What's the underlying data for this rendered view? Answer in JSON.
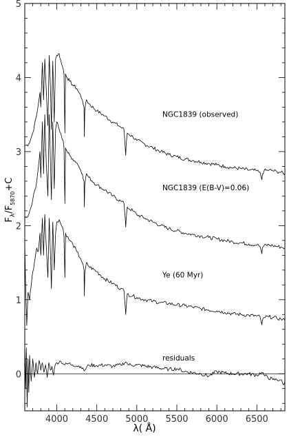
{
  "chart_data": {
    "type": "line",
    "title": "",
    "xlabel": "λ( Å)",
    "ylabel_parts": {
      "main": "F",
      "sub1": "λ",
      "mid": "/F",
      "sub2": "5870",
      "tail": "+C"
    },
    "xlim": [
      3600,
      6850
    ],
    "ylim": [
      -0.5,
      5
    ],
    "x_ticks": [
      4000,
      4500,
      5000,
      5500,
      6000,
      6500
    ],
    "x_tick_labels": [
      "4000",
      "4500",
      "5000",
      "5500",
      "6000",
      "6500"
    ],
    "y_ticks": [
      0,
      1,
      2,
      3,
      4,
      5
    ],
    "y_tick_labels": [
      "0",
      "1",
      "2",
      "3",
      "4",
      "5"
    ],
    "zero_line": true,
    "annotations": [
      {
        "text": "NGC1839 (observed)",
        "x": 5320,
        "y": 3.47
      },
      {
        "text": "NGC1839 (E(B-V)=0.06)",
        "x": 5320,
        "y": 2.48
      },
      {
        "text": "Ye (60 Myr)",
        "x": 5320,
        "y": 1.3
      },
      {
        "text": "residuals",
        "x": 5320,
        "y": 0.18
      }
    ],
    "series": [
      {
        "key": "observed",
        "x": [
          3600,
          3650,
          3700,
          3750,
          3790,
          3800,
          3820,
          3835,
          3850,
          3870,
          3889,
          3905,
          3920,
          3933,
          3950,
          3968,
          3985,
          4000,
          4030,
          4060,
          4080,
          4090,
          4101,
          4110,
          4130,
          4160,
          4200,
          4250,
          4300,
          4320,
          4340,
          4345,
          4350,
          4370,
          4400,
          4500,
          4600,
          4700,
          4800,
          4840,
          4855,
          4861,
          4867,
          4880,
          4950,
          5000,
          5100,
          5200,
          5300,
          5400,
          5500,
          5600,
          5700,
          5800,
          5900,
          6000,
          6100,
          6200,
          6300,
          6400,
          6500,
          6540,
          6555,
          6563,
          6570,
          6590,
          6650,
          6700,
          6750,
          6800,
          6850
        ],
        "y": [
          3.08,
          3.1,
          3.25,
          3.5,
          3.8,
          3.6,
          4.2,
          3.7,
          4.25,
          3.8,
          3.35,
          4.3,
          3.9,
          3.3,
          4.22,
          3.4,
          4.25,
          4.3,
          4.32,
          4.18,
          4.12,
          4.05,
          3.25,
          4.05,
          4.0,
          3.95,
          3.9,
          3.85,
          3.75,
          3.7,
          3.6,
          3.2,
          3.55,
          3.7,
          3.65,
          3.55,
          3.48,
          3.4,
          3.33,
          3.3,
          3.05,
          2.95,
          3.1,
          3.25,
          3.2,
          3.15,
          3.1,
          3.05,
          3.0,
          2.96,
          2.93,
          2.9,
          2.88,
          2.86,
          2.84,
          2.82,
          2.8,
          2.78,
          2.77,
          2.75,
          2.74,
          2.72,
          2.65,
          2.62,
          2.7,
          2.74,
          2.75,
          2.74,
          2.73,
          2.72,
          2.7
        ]
      },
      {
        "key": "dereddened",
        "x": [
          3600,
          3650,
          3700,
          3750,
          3790,
          3800,
          3820,
          3835,
          3850,
          3870,
          3889,
          3905,
          3920,
          3933,
          3950,
          3968,
          3985,
          4000,
          4030,
          4060,
          4080,
          4090,
          4101,
          4110,
          4130,
          4160,
          4200,
          4250,
          4300,
          4320,
          4340,
          4345,
          4350,
          4370,
          4400,
          4500,
          4600,
          4700,
          4800,
          4840,
          4855,
          4861,
          4867,
          4880,
          4950,
          5000,
          5100,
          5200,
          5300,
          5400,
          5500,
          5600,
          5700,
          5800,
          5900,
          6000,
          6100,
          6200,
          6300,
          6400,
          6500,
          6540,
          6555,
          6563,
          6570,
          6590,
          6650,
          6700,
          6750,
          6800,
          6850
        ],
        "y": [
          2.1,
          2.15,
          2.35,
          2.6,
          3.0,
          2.65,
          3.4,
          2.7,
          3.5,
          2.8,
          2.4,
          3.5,
          2.9,
          2.35,
          3.4,
          2.5,
          3.3,
          3.4,
          3.3,
          3.2,
          3.15,
          3.05,
          2.3,
          3.05,
          3.0,
          2.95,
          2.9,
          2.85,
          2.75,
          2.7,
          2.6,
          2.25,
          2.55,
          2.7,
          2.65,
          2.55,
          2.48,
          2.4,
          2.33,
          2.3,
          2.1,
          1.98,
          2.1,
          2.25,
          2.2,
          2.15,
          2.1,
          2.05,
          2.0,
          1.96,
          1.93,
          1.9,
          1.88,
          1.86,
          1.84,
          1.82,
          1.8,
          1.78,
          1.77,
          1.75,
          1.74,
          1.72,
          1.66,
          1.62,
          1.7,
          1.73,
          1.74,
          1.73,
          1.72,
          1.71,
          1.7
        ]
      },
      {
        "key": "model",
        "x": [
          3600,
          3610,
          3625,
          3640,
          3660,
          3690,
          3720,
          3750,
          3770,
          3790,
          3800,
          3820,
          3835,
          3850,
          3870,
          3889,
          3905,
          3920,
          3933,
          3950,
          3968,
          3985,
          4000,
          4030,
          4060,
          4080,
          4090,
          4101,
          4110,
          4130,
          4160,
          4200,
          4250,
          4300,
          4320,
          4340,
          4345,
          4350,
          4370,
          4400,
          4500,
          4600,
          4700,
          4800,
          4840,
          4855,
          4861,
          4867,
          4880,
          4950,
          5000,
          5100,
          5200,
          5300,
          5400,
          5500,
          5600,
          5700,
          5800,
          5900,
          6000,
          6100,
          6200,
          6300,
          6400,
          6500,
          6540,
          6555,
          6563,
          6570,
          6590,
          6650,
          6700,
          6750,
          6800,
          6850
        ],
        "y": [
          1.75,
          1.2,
          0.65,
          1.1,
          1.0,
          1.3,
          1.5,
          1.7,
          1.65,
          1.9,
          1.6,
          2.1,
          1.6,
          2.15,
          1.7,
          1.3,
          2.1,
          1.65,
          1.15,
          2.05,
          1.4,
          1.9,
          2.05,
          2.08,
          2.0,
          1.95,
          1.85,
          1.3,
          1.9,
          1.85,
          1.8,
          1.75,
          1.65,
          1.55,
          1.5,
          1.4,
          1.05,
          1.35,
          1.5,
          1.45,
          1.38,
          1.28,
          1.22,
          1.15,
          1.12,
          0.9,
          0.8,
          0.9,
          1.08,
          1.05,
          1.03,
          1.0,
          0.98,
          0.96,
          0.95,
          0.93,
          0.92,
          0.9,
          0.88,
          0.86,
          0.85,
          0.83,
          0.81,
          0.8,
          0.79,
          0.78,
          0.77,
          0.7,
          0.66,
          0.72,
          0.76,
          0.77,
          0.76,
          0.75,
          0.74,
          0.72
        ]
      },
      {
        "key": "residuals",
        "x": [
          3600,
          3610,
          3620,
          3630,
          3640,
          3650,
          3660,
          3680,
          3700,
          3720,
          3740,
          3760,
          3780,
          3800,
          3820,
          3840,
          3860,
          3880,
          3900,
          3920,
          3940,
          3960,
          3980,
          4000,
          4050,
          4100,
          4150,
          4200,
          4300,
          4340,
          4400,
          4500,
          4600,
          4700,
          4800,
          4861,
          4900,
          5000,
          5200,
          5400,
          5500,
          5600,
          5800,
          5900,
          6000,
          6100,
          6200,
          6400,
          6500,
          6563,
          6600,
          6700,
          6800,
          6830,
          6850
        ],
        "y": [
          0.4,
          -0.2,
          0.35,
          -0.45,
          0.2,
          -0.25,
          0.25,
          -0.1,
          0.2,
          -0.05,
          0.15,
          0.0,
          0.18,
          0.05,
          0.15,
          0.02,
          0.12,
          -0.05,
          0.15,
          0.05,
          0.1,
          -0.02,
          0.12,
          0.15,
          0.17,
          0.12,
          0.14,
          0.12,
          0.1,
          0.04,
          0.12,
          0.11,
          0.12,
          0.1,
          0.12,
          0.16,
          0.12,
          0.12,
          0.09,
          0.06,
          0.07,
          0.03,
          0.0,
          -0.03,
          0.03,
          0.01,
          0.0,
          0.0,
          -0.02,
          0.02,
          -0.03,
          -0.08,
          -0.08,
          -0.15,
          -0.1
        ]
      }
    ]
  }
}
